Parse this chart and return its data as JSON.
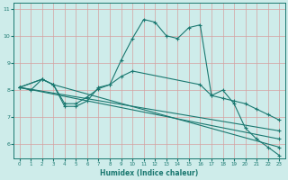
{
  "xlabel": "Humidex (Indice chaleur)",
  "bg_color": "#ceecea",
  "line_color": "#1a7870",
  "grid_color": "#d4a0a0",
  "xlim": [
    -0.5,
    23.5
  ],
  "ylim": [
    5.5,
    11.2
  ],
  "yticks": [
    6,
    7,
    8,
    9,
    10,
    11
  ],
  "xticks": [
    0,
    1,
    2,
    3,
    4,
    5,
    6,
    7,
    8,
    9,
    10,
    11,
    12,
    13,
    14,
    15,
    16,
    17,
    18,
    19,
    20,
    21,
    22,
    23
  ],
  "line1_x": [
    0,
    1,
    2,
    3,
    4,
    5,
    6,
    7,
    8,
    9,
    10,
    11,
    12,
    13,
    14,
    15,
    16,
    17,
    18,
    19,
    20,
    21,
    22,
    23
  ],
  "line1_y": [
    8.1,
    8.0,
    8.4,
    8.2,
    7.4,
    7.4,
    7.6,
    8.1,
    8.2,
    9.1,
    9.9,
    10.6,
    10.5,
    10.0,
    9.9,
    10.3,
    10.4,
    7.8,
    8.0,
    7.5,
    6.6,
    6.2,
    5.9,
    5.6
  ],
  "line2_x": [
    0,
    2,
    3,
    4,
    5,
    6,
    7,
    8,
    9,
    10,
    16,
    17,
    18,
    19,
    20,
    21,
    22,
    23
  ],
  "line2_y": [
    8.1,
    8.4,
    8.2,
    7.5,
    7.5,
    7.75,
    8.05,
    8.2,
    8.5,
    8.7,
    8.2,
    7.8,
    7.7,
    7.6,
    7.5,
    7.3,
    7.1,
    6.9
  ],
  "line3_x": [
    0,
    23
  ],
  "line3_y": [
    8.1,
    6.5
  ],
  "line4_x": [
    0,
    23
  ],
  "line4_y": [
    8.1,
    6.2
  ],
  "line5_x": [
    0,
    2,
    3,
    23
  ],
  "line5_y": [
    8.1,
    8.4,
    8.2,
    5.9
  ]
}
